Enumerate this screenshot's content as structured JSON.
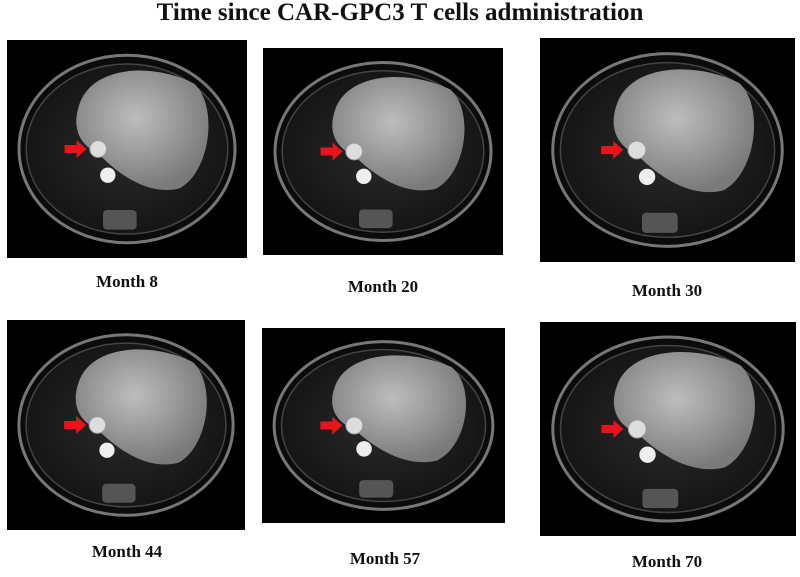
{
  "title": "Time since CAR-GPC3 T cells administration",
  "panels": [
    {
      "label": "Month 8"
    },
    {
      "label": "Month 20"
    },
    {
      "label": "Month 30"
    },
    {
      "label": "Month 44"
    },
    {
      "label": "Month 57"
    },
    {
      "label": "Month 70"
    }
  ]
}
